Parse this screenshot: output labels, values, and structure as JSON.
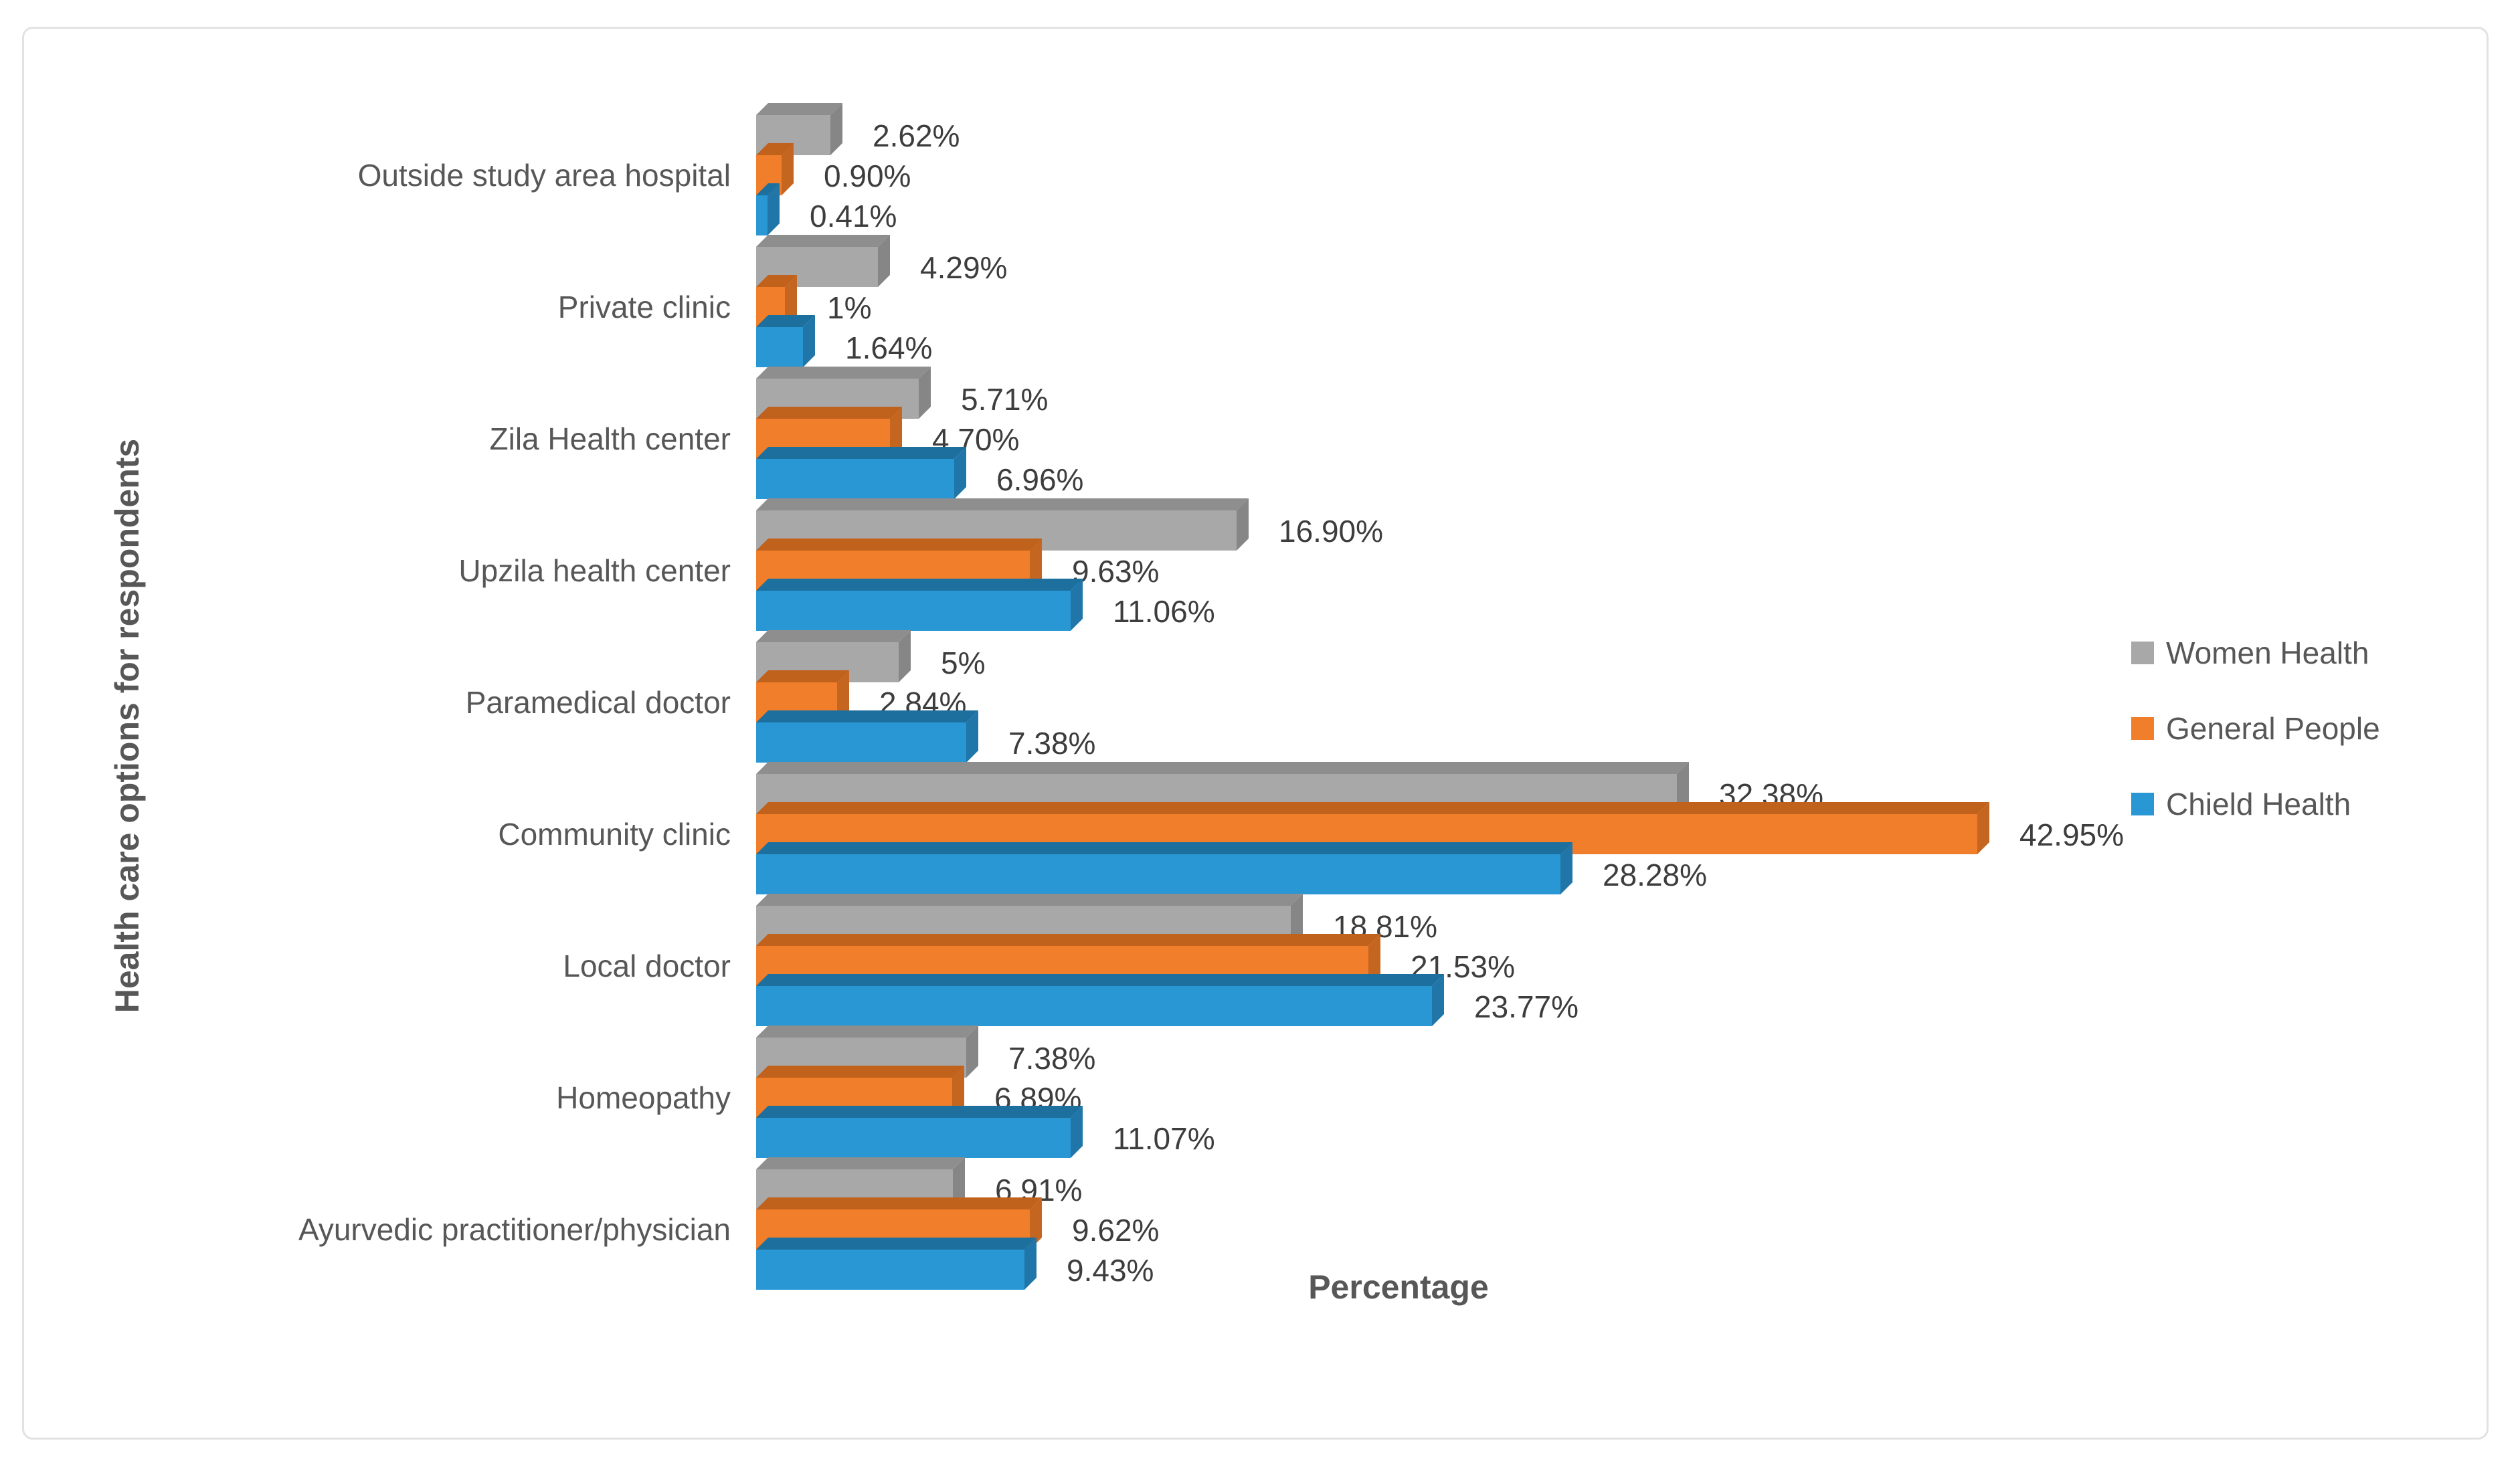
{
  "figure": {
    "background_color": "#ffffff",
    "border_color": "#e2e2e2"
  },
  "chart_data": {
    "type": "bar",
    "orientation": "horizontal",
    "title": "",
    "xlabel": "Percentage",
    "ylabel": "Health care options for respondents",
    "categories": [
      "Outside study area hospital",
      "Private clinic",
      "Zila Health center",
      "Upzila health center",
      "Paramedical doctor",
      "Community clinic",
      "Local doctor",
      "Homeopathy",
      "Ayurvedic practitioner/physician"
    ],
    "series": [
      {
        "name": "Women Health",
        "color": "#a8a8a8",
        "color_top": "#8e8e8e",
        "color_side": "#868686",
        "values": [
          2.62,
          4.29,
          5.71,
          16.9,
          5,
          32.38,
          18.81,
          7.38,
          6.91
        ],
        "labels": [
          "2.62%",
          "4.29%",
          "5.71%",
          "16.90%",
          "5%",
          "32.38%",
          "18.81%",
          "7.38%",
          "6.91%"
        ]
      },
      {
        "name": "General People",
        "color": "#f07e2b",
        "color_top": "#c0611c",
        "color_side": "#c4661f",
        "values": [
          0.9,
          1,
          4.7,
          9.63,
          2.84,
          42.95,
          21.53,
          6.89,
          9.62
        ],
        "labels": [
          "0.90%",
          "1%",
          "4.70%",
          "9.63%",
          "2.84%",
          "42.95%",
          "21.53%",
          "6.89%",
          "9.62%"
        ]
      },
      {
        "name": "Chield Health",
        "color": "#2897d4",
        "color_top": "#1d6f9e",
        "color_side": "#2076a8",
        "values": [
          0.41,
          1.64,
          6.96,
          11.06,
          7.38,
          28.28,
          23.77,
          11.07,
          9.43
        ],
        "labels": [
          "0.41%",
          "1.64%",
          "6.96%",
          "11.06%",
          "7.38%",
          "28.28%",
          "23.77%",
          "11.07%",
          "9.43%"
        ]
      }
    ],
    "legend_position": "right",
    "value_labels_shown": true,
    "gridlines": false,
    "xlim": [
      0,
      57
    ],
    "text_color": "#575757",
    "value_label_color": "#3d3d3d"
  }
}
